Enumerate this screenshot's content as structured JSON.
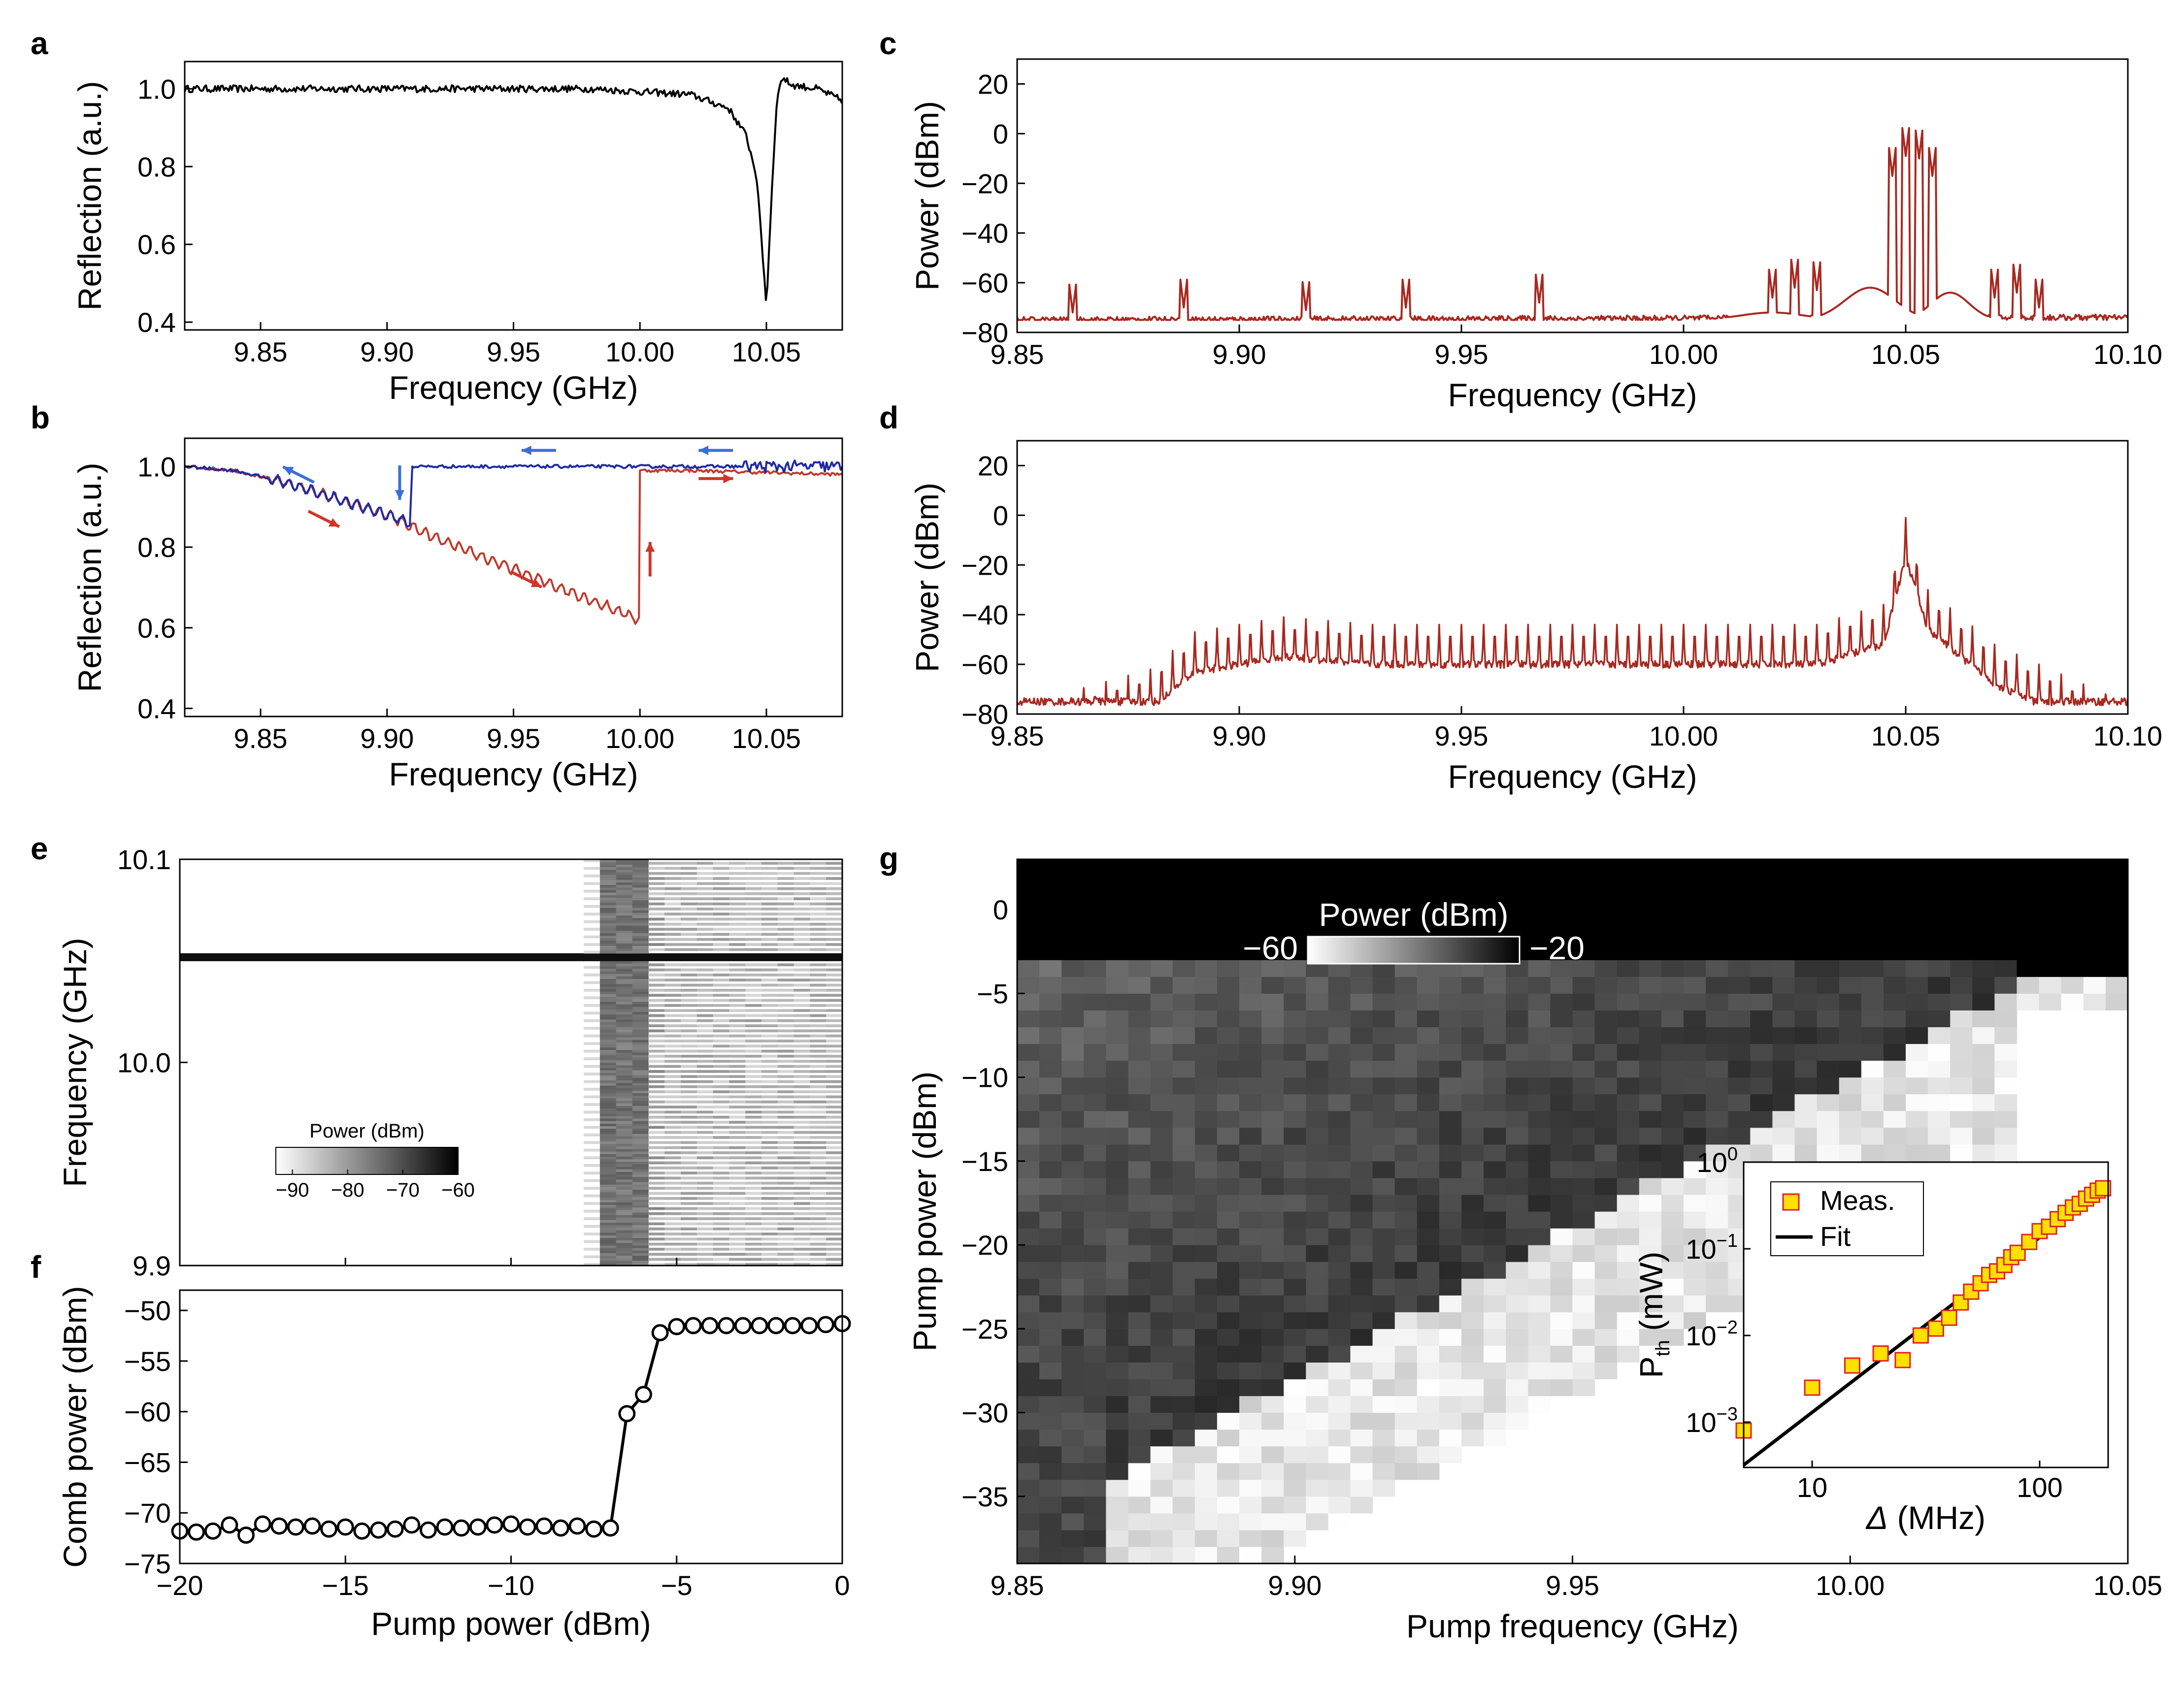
{
  "panels": {
    "a": {
      "label": "a",
      "chart_data": {
        "type": "line",
        "xlabel": "Frequency (GHz)",
        "ylabel": "Reflection (a.u.)",
        "xlim": [
          9.82,
          10.08
        ],
        "ylim": [
          0.38,
          1.07
        ],
        "xticks": [
          "9.85",
          "9.90",
          "9.95",
          "10.00",
          "10.05"
        ],
        "yticks": [
          "0.4",
          "0.6",
          "0.8",
          "1.0"
        ],
        "series": [
          {
            "color": "#000000",
            "x": [
              9.82,
              9.9,
              9.98,
              10.02,
              10.035,
              10.042,
              10.046,
              10.048,
              10.05,
              10.052,
              10.054,
              10.056,
              10.06,
              10.07,
              10.08
            ],
            "y": [
              1.0,
              1.0,
              1.0,
              0.985,
              0.95,
              0.88,
              0.78,
              0.62,
              0.44,
              0.72,
              0.96,
              1.03,
              1.01,
              1.0,
              0.97
            ]
          }
        ]
      }
    },
    "b": {
      "label": "b",
      "chart_data": {
        "type": "line",
        "xlabel": "Frequency (GHz)",
        "ylabel": "Reflection (a.u.)",
        "xlim": [
          9.82,
          10.08
        ],
        "ylim": [
          0.38,
          1.07
        ],
        "xticks": [
          "9.85",
          "9.90",
          "9.95",
          "10.00",
          "10.05"
        ],
        "yticks": [
          "0.4",
          "0.6",
          "0.8",
          "1.0"
        ],
        "series": [
          {
            "color": "#c0392b",
            "x": [
              9.82,
              9.84,
              9.86,
              9.88,
              9.9,
              9.92,
              9.94,
              9.96,
              9.98,
              10.0,
              10.0,
              10.02,
              10.05,
              10.08
            ],
            "y": [
              1.0,
              0.99,
              0.96,
              0.92,
              0.88,
              0.82,
              0.77,
              0.72,
              0.67,
              0.62,
              0.99,
              0.99,
              0.985,
              0.98
            ]
          },
          {
            "color": "#1f2aa5",
            "x": [
              9.82,
              9.84,
              9.86,
              9.88,
              9.9,
              9.909,
              9.91,
              9.95,
              10.0,
              10.05,
              10.08
            ],
            "y": [
              1.0,
              0.99,
              0.96,
              0.92,
              0.88,
              0.86,
              1.0,
              1.0,
              1.0,
              1.0,
              1.0
            ]
          }
        ],
        "arrows": [
          {
            "color": "#3a6fd8",
            "x": 9.865,
            "y": 0.98,
            "dir": "left-up"
          },
          {
            "color": "#3a6fd8",
            "x": 9.905,
            "y": 0.96,
            "dir": "down"
          },
          {
            "color": "#3a6fd8",
            "x": 9.96,
            "y": 1.04,
            "dir": "left"
          },
          {
            "color": "#3a6fd8",
            "x": 10.03,
            "y": 1.04,
            "dir": "left"
          },
          {
            "color": "#d0352b",
            "x": 9.875,
            "y": 0.87,
            "dir": "right-down"
          },
          {
            "color": "#d0352b",
            "x": 9.955,
            "y": 0.72,
            "dir": "right-down"
          },
          {
            "color": "#d0352b",
            "x": 10.004,
            "y": 0.77,
            "dir": "up"
          },
          {
            "color": "#d0352b",
            "x": 10.03,
            "y": 0.97,
            "dir": "right"
          }
        ]
      }
    },
    "c": {
      "label": "c",
      "chart_data": {
        "type": "line",
        "xlabel": "Frequency (GHz)",
        "ylabel": "Power (dBm)",
        "xlim": [
          9.85,
          10.1
        ],
        "ylim": [
          -80,
          30
        ],
        "xticks": [
          "9.85",
          "9.90",
          "9.95",
          "10.00",
          "10.05",
          "10.10"
        ],
        "yticks": [
          "20",
          "0",
          "−20",
          "−40",
          "−60",
          "−80"
        ],
        "series": [
          {
            "color": "#a82820",
            "baseline": -75,
            "peaks": [
              [
                9.8625,
                -72
              ],
              [
                9.8875,
                -70
              ],
              [
                9.915,
                -71
              ],
              [
                9.9375,
                -70
              ],
              [
                9.9675,
                -68
              ],
              [
                10.02,
                -66
              ],
              [
                10.025,
                -62
              ],
              [
                10.03,
                -63
              ],
              [
                10.047,
                -17
              ],
              [
                10.05,
                -9
              ],
              [
                10.053,
                -10
              ],
              [
                10.056,
                -17
              ],
              [
                10.07,
                -66
              ],
              [
                10.075,
                -64
              ],
              [
                10.08,
                -70
              ]
            ],
            "humps": [
              [
                10.042,
                -62,
                0.008
              ],
              [
                10.06,
                -64,
                0.006
              ],
              [
                10.02,
                -72,
                0.01
              ]
            ]
          }
        ]
      }
    },
    "d": {
      "label": "d",
      "chart_data": {
        "type": "line",
        "xlabel": "Frequency (GHz)",
        "ylabel": "Power (dBm)",
        "xlim": [
          9.85,
          10.1
        ],
        "ylim": [
          -80,
          30
        ],
        "xticks": [
          "9.85",
          "9.90",
          "9.95",
          "10.00",
          "10.05",
          "10.10"
        ],
        "yticks": [
          "20",
          "0",
          "−20",
          "−40",
          "−60",
          "−80"
        ],
        "series": [
          {
            "color": "#a82820",
            "comb_start": 9.86,
            "comb_end": 10.095,
            "comb_spacing": 0.0025,
            "floor": -75,
            "envelope": [
              [
                9.86,
                -72
              ],
              [
                9.88,
                -62
              ],
              [
                9.89,
                -47
              ],
              [
                9.91,
                -41
              ],
              [
                9.93,
                -44
              ],
              [
                9.99,
                -44
              ],
              [
                10.03,
                -44
              ],
              [
                10.045,
                -36
              ],
              [
                10.05,
                -1
              ],
              [
                10.055,
                -30
              ],
              [
                10.07,
                -52
              ],
              [
                10.08,
                -60
              ],
              [
                10.095,
                -72
              ]
            ]
          }
        ]
      }
    },
    "e": {
      "label": "e",
      "chart_data": {
        "type": "heatmap",
        "xlabel": "",
        "ylabel": "Frequency (GHz)",
        "xlim": [
          -20,
          0
        ],
        "ylim": [
          9.9,
          10.1
        ],
        "xticks": [
          "",
          "",
          "",
          "",
          ""
        ],
        "yticks": [
          "9.9",
          "10.0",
          "10.1"
        ],
        "colorbar": {
          "title": "Power (dBm)",
          "ticks": [
            "−90",
            "−80",
            "−70",
            "−60"
          ],
          "min": -93,
          "max": -60
        }
      }
    },
    "f": {
      "label": "f",
      "chart_data": {
        "type": "scatter",
        "xlabel": "Pump power (dBm)",
        "ylabel": "Comb power (dBm)",
        "xlim": [
          -20,
          0
        ],
        "ylim": [
          -75,
          -48
        ],
        "xticks": [
          "−20",
          "−15",
          "−10",
          "−5",
          "0"
        ],
        "yticks": [
          "−50",
          "−55",
          "−60",
          "−65",
          "−70",
          "−75"
        ],
        "x": [
          -20.0,
          -19.5,
          -19.0,
          -18.5,
          -18.0,
          -17.5,
          -17.0,
          -16.5,
          -16.0,
          -15.5,
          -15.0,
          -14.5,
          -14.0,
          -13.5,
          -13.0,
          -12.5,
          -12.0,
          -11.5,
          -11.0,
          -10.5,
          -10.0,
          -9.5,
          -9.0,
          -8.5,
          -8.0,
          -7.5,
          -7.0,
          -6.5,
          -6.0,
          -5.5,
          -5.0,
          -4.5,
          -4.0,
          -3.5,
          -3.0,
          -2.5,
          -2.0,
          -1.5,
          -1.0,
          -0.5,
          0.0
        ],
        "y": [
          -71.8,
          -71.9,
          -71.8,
          -71.2,
          -72.2,
          -71.1,
          -71.3,
          -71.4,
          -71.3,
          -71.6,
          -71.4,
          -71.8,
          -71.7,
          -71.6,
          -71.2,
          -71.7,
          -71.4,
          -71.5,
          -71.4,
          -71.2,
          -71.1,
          -71.4,
          -71.3,
          -71.5,
          -71.3,
          -71.6,
          -71.5,
          -60.2,
          -58.3,
          -52.2,
          -51.6,
          -51.5,
          -51.5,
          -51.5,
          -51.5,
          -51.5,
          -51.5,
          -51.5,
          -51.5,
          -51.4,
          -51.3
        ]
      }
    },
    "g": {
      "label": "g",
      "chart_data": {
        "type": "heatmap",
        "xlabel": "Pump frequency (GHz)",
        "ylabel": "Pump power (dBm)",
        "xlim": [
          9.85,
          10.05
        ],
        "ylim": [
          -39,
          3
        ],
        "xticks": [
          "9.85",
          "9.90",
          "9.95",
          "10.00",
          "10.05"
        ],
        "yticks": [
          "0",
          "−5",
          "−10",
          "−15",
          "−20",
          "−25",
          "−30",
          "−35"
        ],
        "colorbar": {
          "title": "Power (dBm)",
          "min_label": "−60",
          "max_label": "−20",
          "min": -60,
          "max": -20
        }
      },
      "inset": {
        "chart_data": {
          "type": "scatter",
          "xlabel_symbol": "Δ",
          "xlabel_unit": " (MHz)",
          "ylabel_main": "P",
          "ylabel_sub": "th",
          "ylabel_unit": " (mW)",
          "xscale": "log",
          "yscale": "log",
          "xlim": [
            5,
            200
          ],
          "ylim": [
            0.0003,
            1.0
          ],
          "xticks": [
            "10",
            "100"
          ],
          "yticks": [
            {
              "base": "10",
              "exp": "0"
            },
            {
              "base": "10",
              "exp": "−1"
            },
            {
              "base": "10",
              "exp": "−2"
            },
            {
              "base": "10",
              "exp": "−3"
            }
          ],
          "series": [
            {
              "name": "Meas.",
              "x": [
                5,
                10,
                15,
                20,
                25,
                30,
                35,
                40,
                45,
                50,
                55,
                60,
                65,
                70,
                75,
                80,
                90,
                100,
                110,
                120,
                130,
                140,
                150,
                160,
                170,
                180,
                190
              ],
              "y": [
                0.0008,
                0.0025,
                0.0045,
                0.0062,
                0.0052,
                0.01,
                0.012,
                0.016,
                0.024,
                0.032,
                0.04,
                0.05,
                0.055,
                0.065,
                0.08,
                0.09,
                0.12,
                0.16,
                0.18,
                0.22,
                0.26,
                0.3,
                0.33,
                0.38,
                0.42,
                0.47,
                0.5
              ],
              "fill": "#ffe100",
              "stroke": "#e02020"
            },
            {
              "name": "Fit",
              "x": [
                5,
                200
              ],
              "y": [
                0.00032,
                0.55
              ],
              "color": "#000000"
            }
          ]
        }
      }
    }
  }
}
